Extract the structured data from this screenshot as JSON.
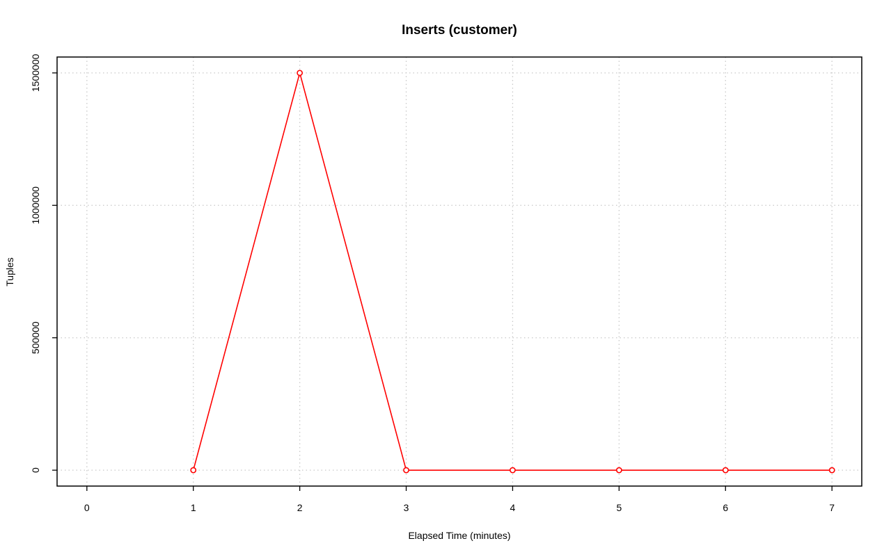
{
  "chart_data": {
    "type": "line",
    "title": "Inserts (customer)",
    "xlabel": "Elapsed Time (minutes)",
    "ylabel": "Tuples",
    "x": [
      1,
      2,
      3,
      4,
      5,
      6,
      7
    ],
    "series": [
      {
        "values": [
          0,
          1500000,
          0,
          0,
          0,
          0,
          0
        ],
        "color": "#ff0000"
      }
    ],
    "xticks": [
      0,
      1,
      2,
      3,
      4,
      5,
      6,
      7
    ],
    "yticks": [
      0,
      500000,
      1000000,
      1500000
    ],
    "xlim": [
      -0.28,
      7.28
    ],
    "ylim": [
      -60000,
      1560000
    ],
    "grid": true,
    "legend": "none"
  }
}
